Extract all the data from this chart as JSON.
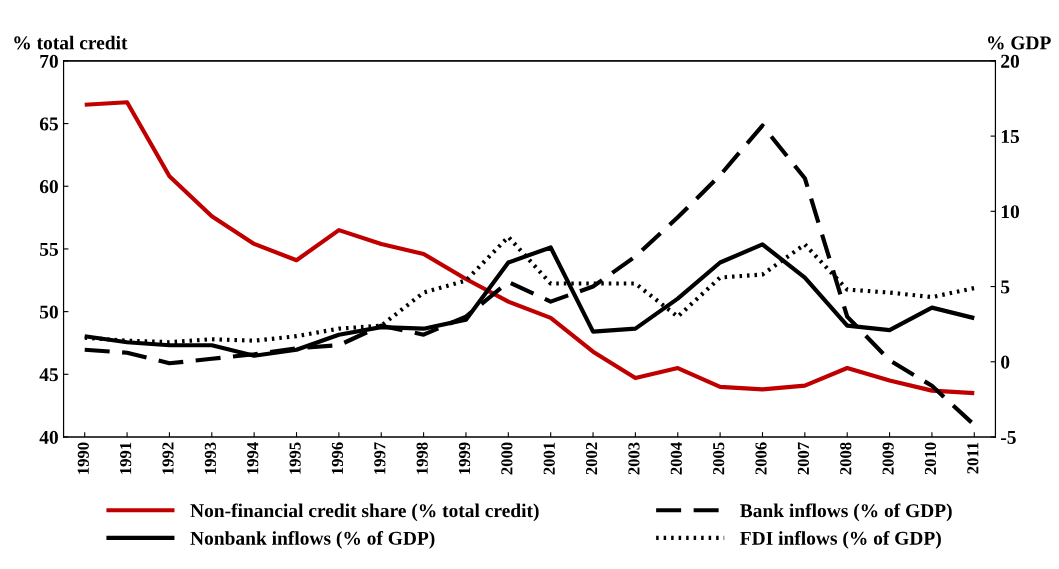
{
  "chart_data": {
    "type": "line",
    "ylabel": "% total credit",
    "y2label": "% GDP",
    "categories": [
      "1990",
      "1991",
      "1992",
      "1993",
      "1994",
      "1995",
      "1996",
      "1997",
      "1998",
      "1999",
      "2000",
      "2001",
      "2002",
      "2003",
      "2004",
      "2005",
      "2006",
      "2007",
      "2008",
      "2009",
      "2010",
      "2011"
    ],
    "ylim": [
      40,
      70
    ],
    "yticks": [
      40,
      45,
      50,
      55,
      60,
      65,
      70
    ],
    "y2lim": [
      -5,
      20
    ],
    "y2ticks": [
      -5,
      0,
      5,
      10,
      15,
      20
    ],
    "grid": false,
    "legend": "bottom",
    "marker": "none",
    "series": [
      {
        "name": "Non-financial credit share (% total credit)",
        "color": "#c00000",
        "line_style": "solid",
        "values": [
          66.5,
          66.7,
          60.8,
          57.6,
          55.4,
          54.1,
          56.5,
          55.4,
          54.6,
          52.6,
          50.8,
          49.5,
          46.8,
          44.7,
          45.5,
          44.0,
          43.8,
          44.1,
          45.5,
          44.5,
          43.7,
          43.5
        ]
      },
      {
        "name": "Nonbank inflows (% of GDP)",
        "color": "#000000",
        "axis": "y2",
        "line_style": "solid",
        "values": [
          1.7,
          1.3,
          1.1,
          1.1,
          0.4,
          0.8,
          1.8,
          2.3,
          2.2,
          2.8,
          6.6,
          7.6,
          2.0,
          2.2,
          4.2,
          6.6,
          7.8,
          5.6,
          2.4,
          2.1,
          3.6,
          2.9
        ]
      },
      {
        "name": "Bank inflows (% of GDP)",
        "color": "#000000",
        "axis": "y2",
        "line_style": "dashed",
        "values": [
          0.8,
          0.6,
          -0.1,
          0.2,
          0.5,
          0.9,
          1.1,
          2.4,
          1.8,
          3.0,
          5.3,
          4.0,
          5.0,
          7.0,
          9.6,
          12.4,
          15.7,
          12.2,
          3.0,
          0.1,
          -1.6,
          -4.2
        ]
      },
      {
        "name": "FDI inflows (% of GDP)",
        "color": "#000000",
        "axis": "y2",
        "line_style": "dotted",
        "values": [
          1.6,
          1.4,
          1.3,
          1.5,
          1.4,
          1.7,
          2.2,
          2.4,
          4.6,
          5.4,
          8.3,
          5.2,
          5.2,
          5.2,
          3.0,
          5.6,
          5.8,
          7.8,
          4.8,
          4.6,
          4.3,
          4.9
        ]
      }
    ]
  }
}
